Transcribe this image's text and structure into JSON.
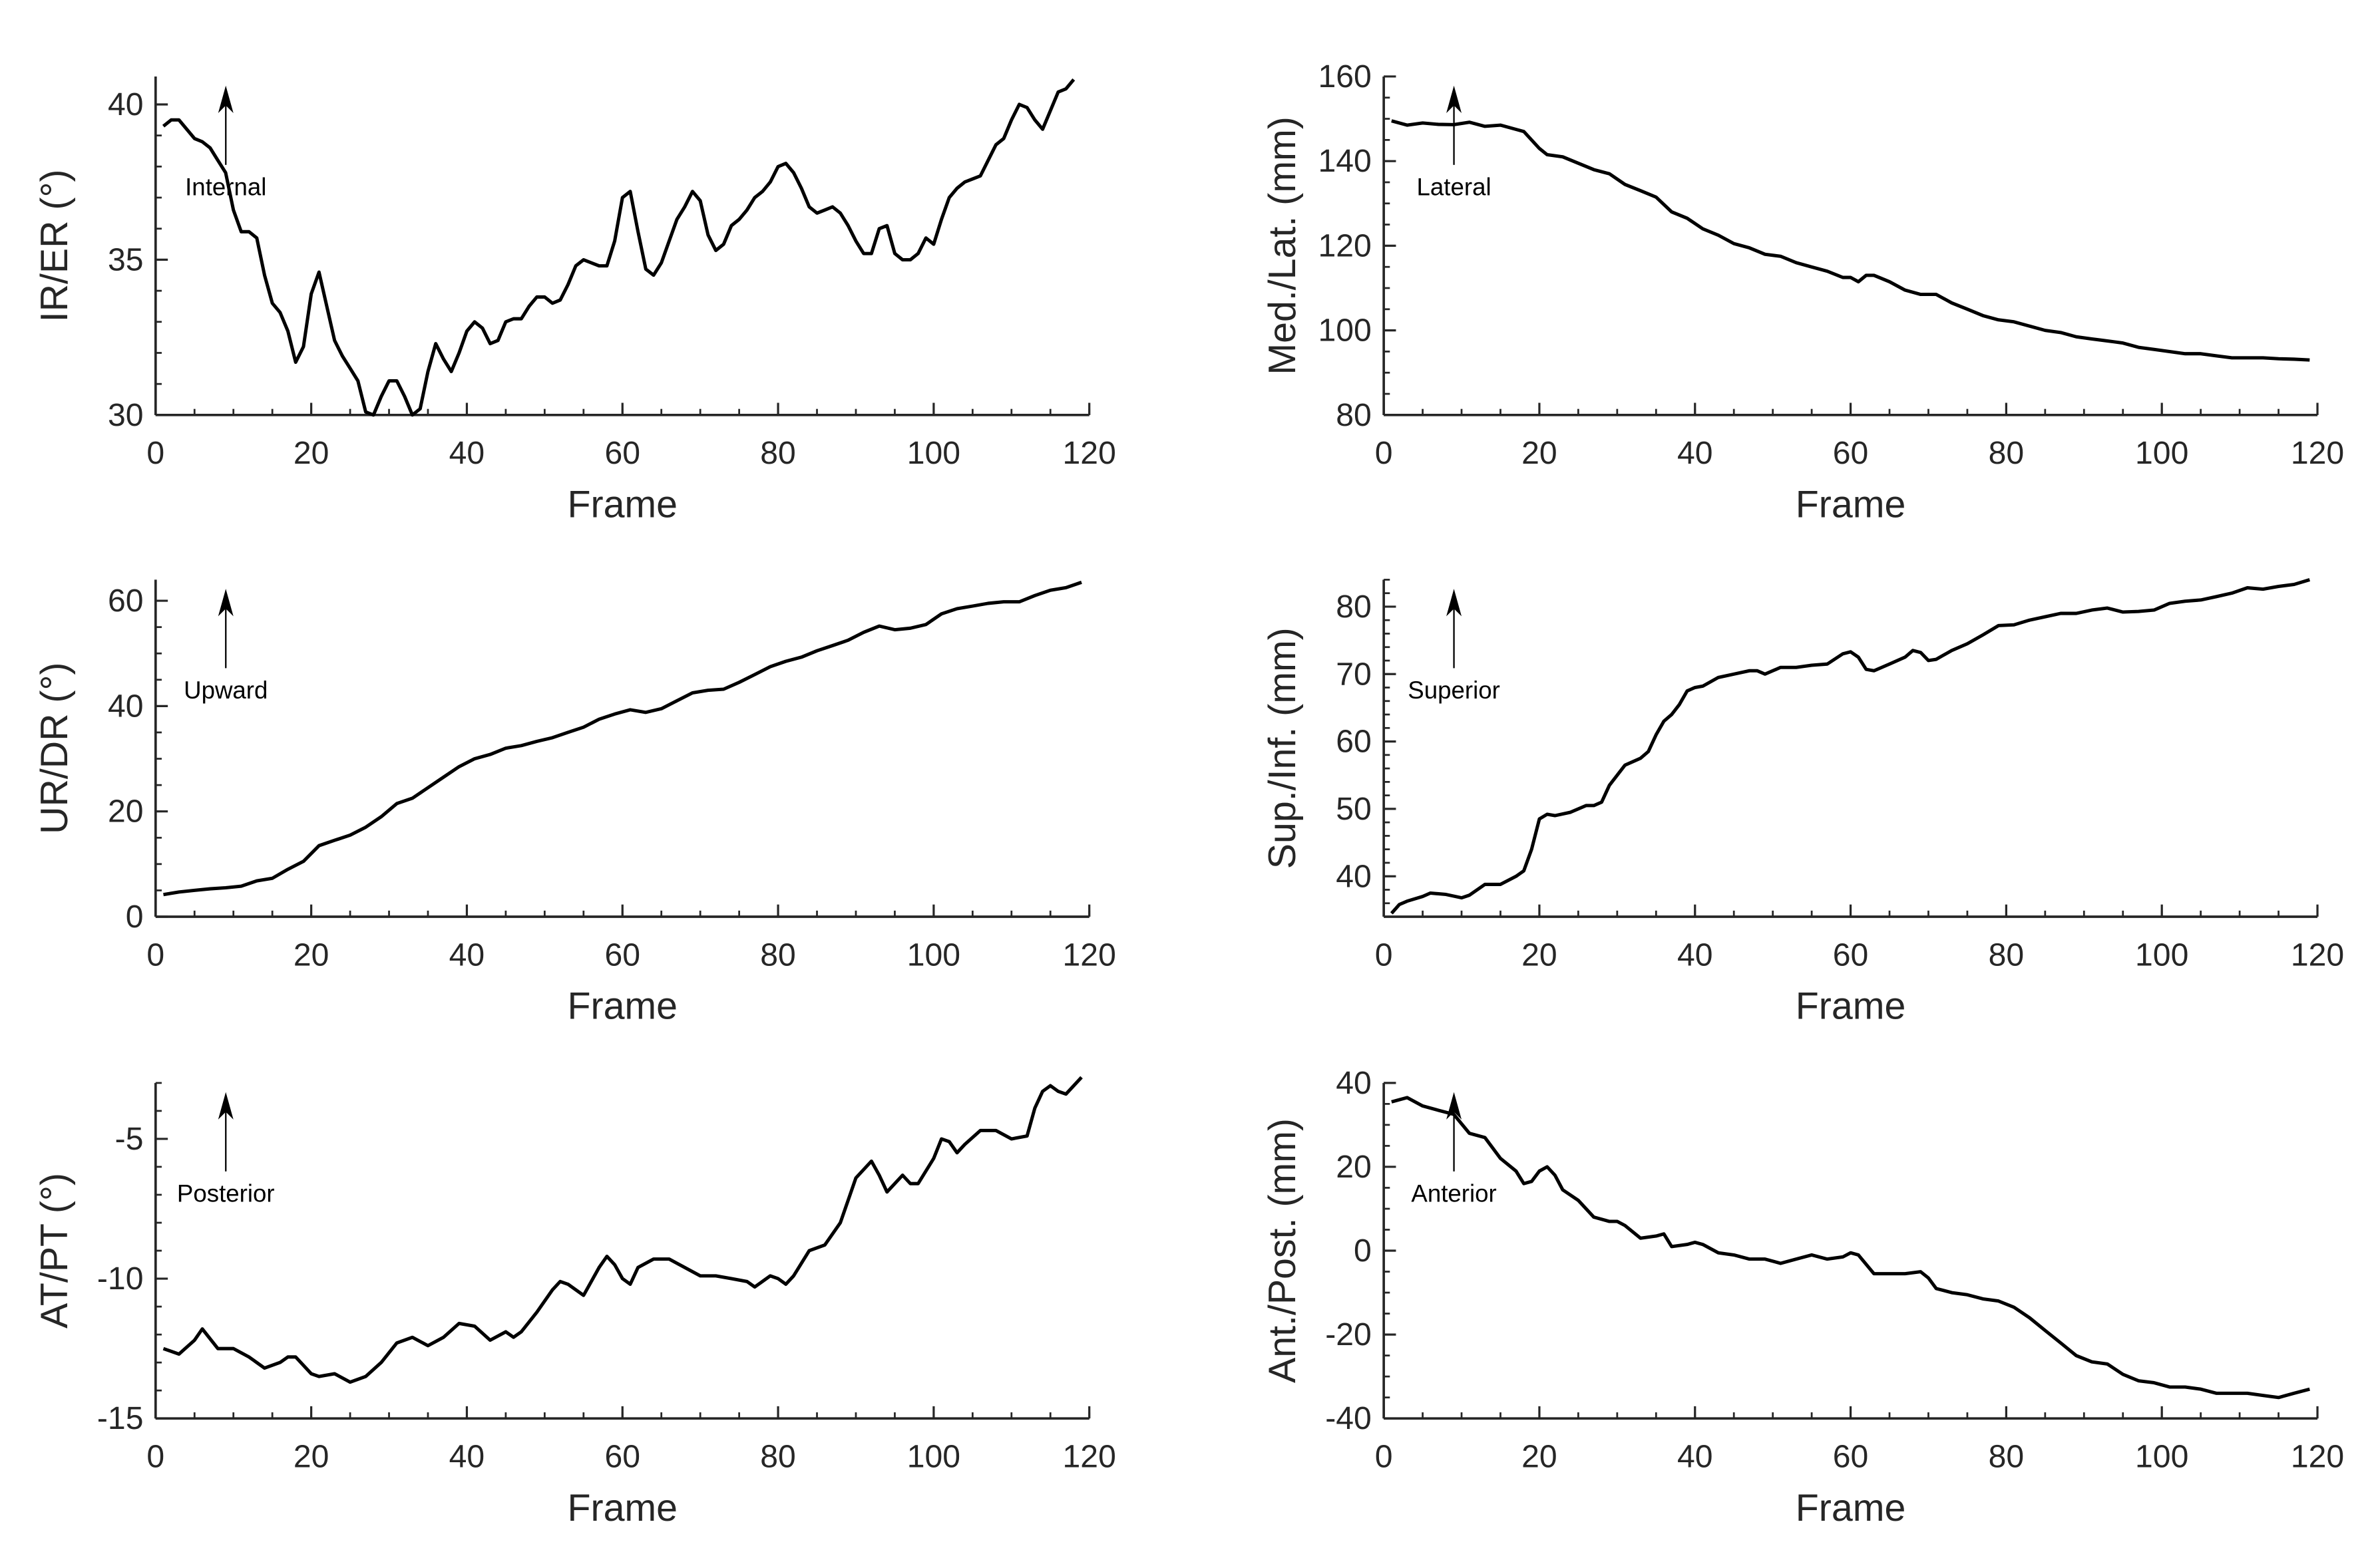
{
  "chart_data": [
    {
      "type": "line",
      "xlabel": "Frame",
      "ylabel": "IR/ER (°)",
      "xlim": [
        0,
        120
      ],
      "ylim": [
        30,
        40.9
      ],
      "xticks": [
        0,
        20,
        40,
        60,
        80,
        100,
        120
      ],
      "yticks": [
        30,
        35,
        40
      ],
      "x_minor_step": 5,
      "y_minor_step": 1,
      "annotation": "Internal",
      "annotation_arrow": "up",
      "x": [
        1,
        2,
        3,
        5,
        6,
        7,
        8,
        9,
        10,
        11,
        12,
        13,
        14,
        15,
        16,
        17,
        18,
        19,
        20,
        21,
        22,
        23,
        24,
        25,
        26,
        27,
        28,
        29,
        30,
        31,
        32,
        33,
        34,
        35,
        36,
        37,
        38,
        39,
        40,
        41,
        42,
        43,
        44,
        45,
        46,
        47,
        48,
        49,
        50,
        51,
        52,
        53,
        54,
        55,
        56,
        57,
        58,
        59,
        60,
        61,
        62,
        63,
        64,
        65,
        66,
        67,
        68,
        69,
        70,
        71,
        72,
        73,
        74,
        75,
        76,
        77,
        78,
        79,
        80,
        81,
        82,
        83,
        84,
        85,
        86,
        87,
        88,
        89,
        90,
        91,
        92,
        93,
        94,
        95,
        96,
        97,
        98,
        99,
        100,
        101,
        102,
        103,
        104,
        105,
        106,
        107,
        108,
        109,
        110,
        111,
        112,
        113,
        114,
        115,
        116,
        117,
        118
      ],
      "y": [
        39.3,
        39.5,
        39.5,
        38.9,
        38.8,
        38.6,
        38.2,
        37.8,
        36.6,
        35.9,
        35.9,
        35.7,
        34.5,
        33.6,
        33.3,
        32.7,
        31.7,
        32.2,
        33.9,
        34.6,
        33.5,
        32.4,
        31.9,
        31.5,
        31.1,
        30.1,
        30.0,
        30.6,
        31.1,
        31.1,
        30.6,
        30.0,
        30.2,
        31.4,
        32.3,
        31.8,
        31.4,
        32.0,
        32.7,
        33.0,
        32.8,
        32.3,
        32.4,
        33.0,
        33.1,
        33.1,
        33.5,
        33.8,
        33.8,
        33.6,
        33.7,
        34.2,
        34.8,
        35.0,
        34.9,
        34.8,
        34.8,
        35.6,
        37.0,
        37.2,
        35.9,
        34.7,
        34.5,
        34.9,
        35.6,
        36.3,
        36.7,
        37.2,
        36.9,
        35.8,
        35.3,
        35.5,
        36.1,
        36.3,
        36.6,
        37.0,
        37.2,
        37.5,
        38.0,
        38.1,
        37.8,
        37.3,
        36.7,
        36.5,
        36.6,
        36.7,
        36.5,
        36.1,
        35.6,
        35.2,
        35.2,
        36.0,
        36.1,
        35.2,
        35.0,
        35.0,
        35.2,
        35.7,
        35.5,
        36.3,
        37.0,
        37.3,
        37.5,
        37.6,
        37.7,
        38.2,
        38.7,
        38.9,
        39.5,
        40.0,
        39.9,
        39.5,
        39.2,
        39.8,
        40.4,
        40.5,
        40.8
      ]
    },
    {
      "type": "line",
      "xlabel": "Frame",
      "ylabel": "Med./Lat. (mm)",
      "xlim": [
        0,
        120
      ],
      "ylim": [
        80,
        160
      ],
      "xticks": [
        0,
        20,
        40,
        60,
        80,
        100,
        120
      ],
      "yticks": [
        80,
        100,
        120,
        140,
        160
      ],
      "x_minor_step": 5,
      "y_minor_step": 5,
      "annotation": "Lateral",
      "annotation_arrow": "up",
      "x": [
        1,
        3,
        5,
        7,
        9,
        11,
        13,
        15,
        17,
        18,
        20,
        21,
        23,
        25,
        27,
        29,
        31,
        33,
        35,
        37,
        39,
        41,
        43,
        45,
        47,
        49,
        51,
        53,
        55,
        57,
        59,
        60,
        61,
        62,
        63,
        65,
        67,
        69,
        71,
        73,
        75,
        77,
        79,
        81,
        83,
        85,
        87,
        89,
        91,
        93,
        95,
        97,
        99,
        101,
        103,
        105,
        107,
        109,
        111,
        113,
        115,
        117,
        119
      ],
      "y": [
        149.5,
        148.5,
        149,
        148.7,
        148.6,
        149.2,
        148.2,
        148.5,
        147.5,
        147,
        143,
        141.5,
        141,
        139.5,
        138,
        137,
        134.5,
        133,
        131.5,
        128,
        126.5,
        124,
        122.5,
        120.5,
        119.5,
        118,
        117.5,
        116,
        115,
        114,
        112.5,
        112.5,
        111.5,
        113,
        113,
        111.5,
        109.5,
        108.5,
        108.5,
        106.5,
        105,
        103.5,
        102.5,
        102,
        101,
        100,
        99.5,
        98.5,
        98,
        97.5,
        97,
        96,
        95.5,
        95,
        94.5,
        94.5,
        94,
        93.5,
        93.5,
        93.5,
        93.3,
        93.2,
        93
      ]
    },
    {
      "type": "line",
      "xlabel": "Frame",
      "ylabel": "UR/DR (°)",
      "xlim": [
        0,
        120
      ],
      "ylim": [
        0,
        64
      ],
      "xticks": [
        0,
        20,
        40,
        60,
        80,
        100,
        120
      ],
      "yticks": [
        0,
        20,
        40,
        60
      ],
      "x_minor_step": 5,
      "y_minor_step": 5,
      "annotation": "Upward",
      "annotation_arrow": "up",
      "x": [
        1,
        3,
        5,
        7,
        9,
        11,
        13,
        15,
        17,
        19,
        21,
        23,
        25,
        27,
        29,
        31,
        33,
        35,
        37,
        39,
        41,
        43,
        45,
        47,
        49,
        51,
        53,
        55,
        57,
        59,
        61,
        63,
        65,
        67,
        69,
        71,
        73,
        75,
        77,
        79,
        81,
        83,
        85,
        87,
        89,
        91,
        93,
        95,
        97,
        99,
        101,
        103,
        105,
        107,
        109,
        111,
        113,
        115,
        117,
        119
      ],
      "y": [
        4.2,
        4.7,
        5,
        5.3,
        5.5,
        5.8,
        6.8,
        7.3,
        9,
        10.5,
        13.5,
        14.5,
        15.5,
        17,
        19,
        21.5,
        22.5,
        24.5,
        26.5,
        28.5,
        30,
        30.8,
        32,
        32.5,
        33.3,
        34,
        35,
        36,
        37.5,
        38.5,
        39.3,
        38.8,
        39.5,
        41,
        42.5,
        43,
        43.2,
        44.5,
        46,
        47.5,
        48.5,
        49.3,
        50.5,
        51.5,
        52.5,
        54,
        55.2,
        54.5,
        54.8,
        55.5,
        57.5,
        58.5,
        59,
        59.5,
        59.8,
        59.8,
        61,
        62,
        62.5,
        63.5
      ]
    },
    {
      "type": "line",
      "xlabel": "Frame",
      "ylabel": "Sup./Inf. (mm)",
      "xlim": [
        0,
        120
      ],
      "ylim": [
        34,
        84
      ],
      "xticks": [
        0,
        20,
        40,
        60,
        80,
        100,
        120
      ],
      "yticks": [
        40,
        50,
        60,
        70,
        80
      ],
      "x_minor_step": 5,
      "y_minor_step": 2,
      "annotation": "Superior",
      "annotation_arrow": "up",
      "x": [
        1,
        2,
        3,
        5,
        6,
        8,
        10,
        11,
        13,
        15,
        17,
        18,
        19,
        20,
        21,
        22,
        24,
        26,
        27,
        28,
        29,
        31,
        33,
        34,
        35,
        36,
        37,
        38,
        39,
        40,
        41,
        43,
        45,
        47,
        48,
        49,
        51,
        53,
        55,
        57,
        59,
        60,
        61,
        62,
        63,
        65,
        67,
        68,
        69,
        70,
        71,
        73,
        75,
        77,
        79,
        81,
        83,
        85,
        87,
        89,
        91,
        93,
        95,
        97,
        99,
        101,
        103,
        105,
        107,
        109,
        111,
        113,
        115,
        117,
        119
      ],
      "y": [
        34.5,
        35.8,
        36.3,
        37,
        37.5,
        37.3,
        36.8,
        37.2,
        38.8,
        38.8,
        40,
        40.8,
        44,
        48.5,
        49.2,
        49,
        49.5,
        50.5,
        50.5,
        51,
        53.5,
        56.5,
        57.5,
        58.5,
        61,
        63,
        64,
        65.5,
        67.5,
        68,
        68.2,
        69.5,
        70,
        70.5,
        70.5,
        70,
        71,
        71,
        71.3,
        71.5,
        73,
        73.3,
        72.5,
        70.7,
        70.5,
        71.5,
        72.5,
        73.5,
        73.2,
        72,
        72.2,
        73.5,
        74.5,
        75.8,
        77.2,
        77.3,
        78,
        78.5,
        79,
        79,
        79.5,
        79.8,
        79.2,
        79.3,
        79.5,
        80.5,
        80.8,
        81,
        81.5,
        82,
        82.8,
        82.6,
        83,
        83.3,
        84
      ]
    },
    {
      "type": "line",
      "xlabel": "Frame",
      "ylabel": "AT/PT (°)",
      "xlim": [
        0,
        120
      ],
      "ylim": [
        -15,
        -3
      ],
      "xticks": [
        0,
        20,
        40,
        60,
        80,
        100,
        120
      ],
      "yticks": [
        -15,
        -10,
        -5
      ],
      "x_minor_step": 5,
      "y_minor_step": 1,
      "annotation": "Posterior",
      "annotation_arrow": "up",
      "x": [
        1,
        3,
        5,
        6,
        8,
        10,
        12,
        14,
        16,
        17,
        18,
        20,
        21,
        23,
        25,
        27,
        29,
        31,
        33,
        35,
        37,
        39,
        41,
        43,
        45,
        46,
        47,
        49,
        51,
        52,
        53,
        55,
        57,
        58,
        59,
        60,
        61,
        62,
        64,
        66,
        68,
        70,
        72,
        74,
        76,
        77,
        79,
        80,
        81,
        82,
        84,
        86,
        88,
        90,
        92,
        93,
        94,
        96,
        97,
        98,
        100,
        101,
        102,
        103,
        104,
        106,
        108,
        110,
        112,
        113,
        114,
        115,
        116,
        117,
        118,
        119
      ],
      "y": [
        -12.5,
        -12.7,
        -12.2,
        -11.8,
        -12.5,
        -12.5,
        -12.8,
        -13.2,
        -13,
        -12.8,
        -12.8,
        -13.4,
        -13.5,
        -13.4,
        -13.7,
        -13.5,
        -13,
        -12.3,
        -12.1,
        -12.4,
        -12.1,
        -11.6,
        -11.7,
        -12.2,
        -11.9,
        -12.1,
        -11.9,
        -11.2,
        -10.4,
        -10.1,
        -10.2,
        -10.6,
        -9.6,
        -9.2,
        -9.5,
        -10.0,
        -10.2,
        -9.6,
        -9.3,
        -9.3,
        -9.6,
        -9.9,
        -9.9,
        -10.0,
        -10.1,
        -10.3,
        -9.9,
        -10.0,
        -10.2,
        -9.9,
        -9.0,
        -8.8,
        -8.0,
        -6.4,
        -5.8,
        -6.3,
        -6.9,
        -6.3,
        -6.6,
        -6.6,
        -5.7,
        -5.0,
        -5.1,
        -5.5,
        -5.2,
        -4.7,
        -4.7,
        -5.0,
        -4.9,
        -3.9,
        -3.3,
        -3.1,
        -3.3,
        -3.4,
        -3.1,
        -2.8
      ]
    },
    {
      "type": "line",
      "xlabel": "Frame",
      "ylabel": "Ant./Post. (mm)",
      "xlim": [
        0,
        120
      ],
      "ylim": [
        -40,
        40
      ],
      "xticks": [
        0,
        20,
        40,
        60,
        80,
        100,
        120
      ],
      "yticks": [
        -40,
        -20,
        0,
        20,
        40
      ],
      "x_minor_step": 5,
      "y_minor_step": 5,
      "annotation": "Anterior",
      "annotation_arrow": "up",
      "x": [
        1,
        3,
        5,
        7,
        9,
        11,
        13,
        15,
        17,
        18,
        19,
        20,
        21,
        22,
        23,
        25,
        27,
        29,
        30,
        31,
        33,
        35,
        36,
        37,
        39,
        40,
        41,
        43,
        45,
        47,
        49,
        51,
        53,
        55,
        57,
        59,
        60,
        61,
        63,
        65,
        67,
        69,
        70,
        71,
        73,
        75,
        77,
        79,
        81,
        83,
        85,
        87,
        89,
        91,
        93,
        95,
        97,
        99,
        101,
        103,
        105,
        107,
        109,
        111,
        113,
        115,
        117,
        119
      ],
      "y": [
        35.5,
        36.5,
        34.5,
        33.5,
        32.5,
        28,
        27,
        22,
        19,
        16,
        16.5,
        19,
        20,
        18,
        14.5,
        12,
        8,
        7,
        7,
        6,
        3,
        3.5,
        4,
        1,
        1.5,
        2,
        1.5,
        -0.5,
        -1,
        -2,
        -2,
        -3,
        -2,
        -1,
        -2,
        -1.5,
        -0.5,
        -1,
        -5.5,
        -5.5,
        -5.5,
        -5,
        -6.5,
        -9,
        -10,
        -10.5,
        -11.5,
        -12,
        -13.5,
        -16,
        -19,
        -22,
        -25,
        -26.5,
        -27,
        -29.5,
        -31,
        -31.5,
        -32.5,
        -32.5,
        -33,
        -34,
        -34,
        -34,
        -34.5,
        -35,
        -34,
        -33
      ]
    }
  ]
}
